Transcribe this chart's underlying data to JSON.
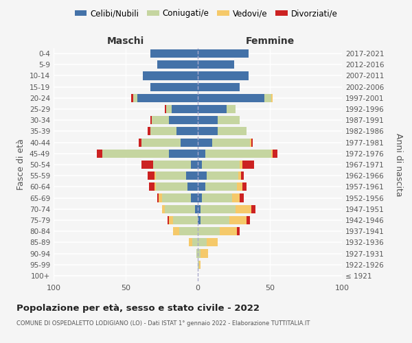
{
  "age_groups": [
    "100+",
    "95-99",
    "90-94",
    "85-89",
    "80-84",
    "75-79",
    "70-74",
    "65-69",
    "60-64",
    "55-59",
    "50-54",
    "45-49",
    "40-44",
    "35-39",
    "30-34",
    "25-29",
    "20-24",
    "15-19",
    "10-14",
    "5-9",
    "0-4"
  ],
  "birth_years": [
    "≤ 1921",
    "1922-1926",
    "1927-1931",
    "1932-1936",
    "1937-1941",
    "1942-1946",
    "1947-1951",
    "1952-1956",
    "1957-1961",
    "1962-1966",
    "1967-1971",
    "1972-1976",
    "1977-1981",
    "1982-1986",
    "1987-1991",
    "1992-1996",
    "1997-2001",
    "2002-2006",
    "2007-2011",
    "2012-2016",
    "2017-2021"
  ],
  "males": {
    "celibi": [
      0,
      0,
      0,
      0,
      0,
      0,
      2,
      5,
      7,
      8,
      5,
      20,
      12,
      15,
      20,
      18,
      42,
      33,
      38,
      28,
      33
    ],
    "coniugati": [
      0,
      0,
      1,
      4,
      13,
      17,
      21,
      20,
      22,
      21,
      26,
      46,
      27,
      18,
      12,
      4,
      3,
      0,
      0,
      0,
      0
    ],
    "vedovi": [
      0,
      0,
      0,
      2,
      4,
      3,
      2,
      2,
      1,
      1,
      0,
      0,
      0,
      0,
      0,
      0,
      0,
      0,
      0,
      0,
      0
    ],
    "divorziati": [
      0,
      0,
      0,
      0,
      0,
      1,
      0,
      1,
      4,
      5,
      8,
      4,
      2,
      2,
      1,
      1,
      1,
      0,
      0,
      0,
      0
    ]
  },
  "females": {
    "nubili": [
      0,
      0,
      0,
      0,
      0,
      2,
      2,
      3,
      5,
      6,
      3,
      5,
      10,
      14,
      14,
      20,
      46,
      29,
      35,
      25,
      35
    ],
    "coniugate": [
      0,
      1,
      2,
      6,
      15,
      20,
      24,
      21,
      22,
      22,
      26,
      46,
      26,
      20,
      15,
      6,
      5,
      0,
      0,
      0,
      0
    ],
    "vedove": [
      0,
      1,
      5,
      8,
      12,
      12,
      11,
      5,
      4,
      2,
      2,
      1,
      1,
      0,
      0,
      0,
      1,
      0,
      0,
      0,
      0
    ],
    "divorziate": [
      0,
      0,
      0,
      0,
      2,
      2,
      3,
      3,
      3,
      2,
      8,
      3,
      1,
      0,
      0,
      0,
      0,
      0,
      0,
      0,
      0
    ]
  },
  "colors": {
    "celibi": "#4472a8",
    "coniugati": "#c5d5a0",
    "vedovi": "#f5c96a",
    "divorziati": "#cc2222"
  },
  "xlim": 100,
  "title": "Popolazione per età, sesso e stato civile - 2022",
  "subtitle": "COMUNE DI OSPEDALETTO LODIGIANO (LO) - Dati ISTAT 1° gennaio 2022 - Elaborazione TUTTITALIA.IT",
  "legend_labels": [
    "Celibi/Nubili",
    "Coniugati/e",
    "Vedovi/e",
    "Divorziati/e"
  ],
  "label_maschi": "Maschi",
  "label_femmine": "Femmine",
  "ylabel_left": "Fasce di età",
  "ylabel_right": "Anni di nascita",
  "bg_color": "#f5f5f5",
  "grid_color": "#ffffff",
  "center_line_color": "#aaaacc",
  "text_color": "#555555",
  "title_color": "#222222",
  "bar_height": 0.75
}
